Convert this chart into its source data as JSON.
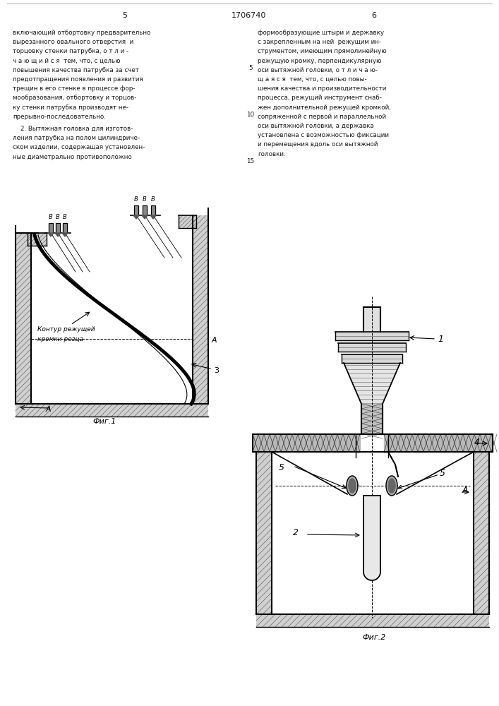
{
  "page_number_left": "5",
  "page_number_center": "1706740",
  "page_number_right": "6",
  "bg_color": "#ffffff",
  "text_color": "#1a1a1a",
  "left_text": [
    "включающий отбортовку предварительно",
    "вырезанного овального отверстия  и",
    "торцовку стенки патрубка, о т л и -",
    "ч а ю щ и й с я  тем, что, с целью",
    "повышения качества патрубка за счет",
    "предотпращения появления и развития",
    "трещин в его стенке в процессе фор-",
    "мообразования, отбортовку и торцов-",
    "ку стенки патрубка производят не-",
    "прерывно-последовательно."
  ],
  "left_text2": [
    "    2. Вытяжная головка для изготов-",
    "ления патрубка на полом цилиндриче-",
    "ском изделии, содержащая установлен-",
    "ные диаметрально противоположно"
  ],
  "right_text": [
    "формообразующие штыри и державку",
    "с закрепленным на ней  режущим ин-",
    "струментом, имеющим прямолинейную",
    "режущую кромку, перпендикулярную",
    "оси вытяжной головки, о т л и ч а ю-",
    "щ а я с я  тем, что, с целью повы-",
    "шения качества и производительности",
    "процесса, режущий инструмент снаб-",
    "жен дополнительной режущей кромкой,",
    "сопряженной с первой и параллельной",
    "оси вытяжной головки, а державка",
    "установлена с возможностью фиксации",
    "и перемещения вдоль оси вытяжной",
    "головки."
  ],
  "fig1_label": "Фиг.1",
  "fig2_label": "Фиг.2",
  "contour_label1": "Контур режущей",
  "contour_label2": "кромки резца",
  "lbl_B": "B",
  "lbl_A": "A",
  "lbl_1": "1",
  "lbl_2": "2",
  "lbl_3": "3",
  "lbl_4": "4",
  "lbl_5": "5"
}
